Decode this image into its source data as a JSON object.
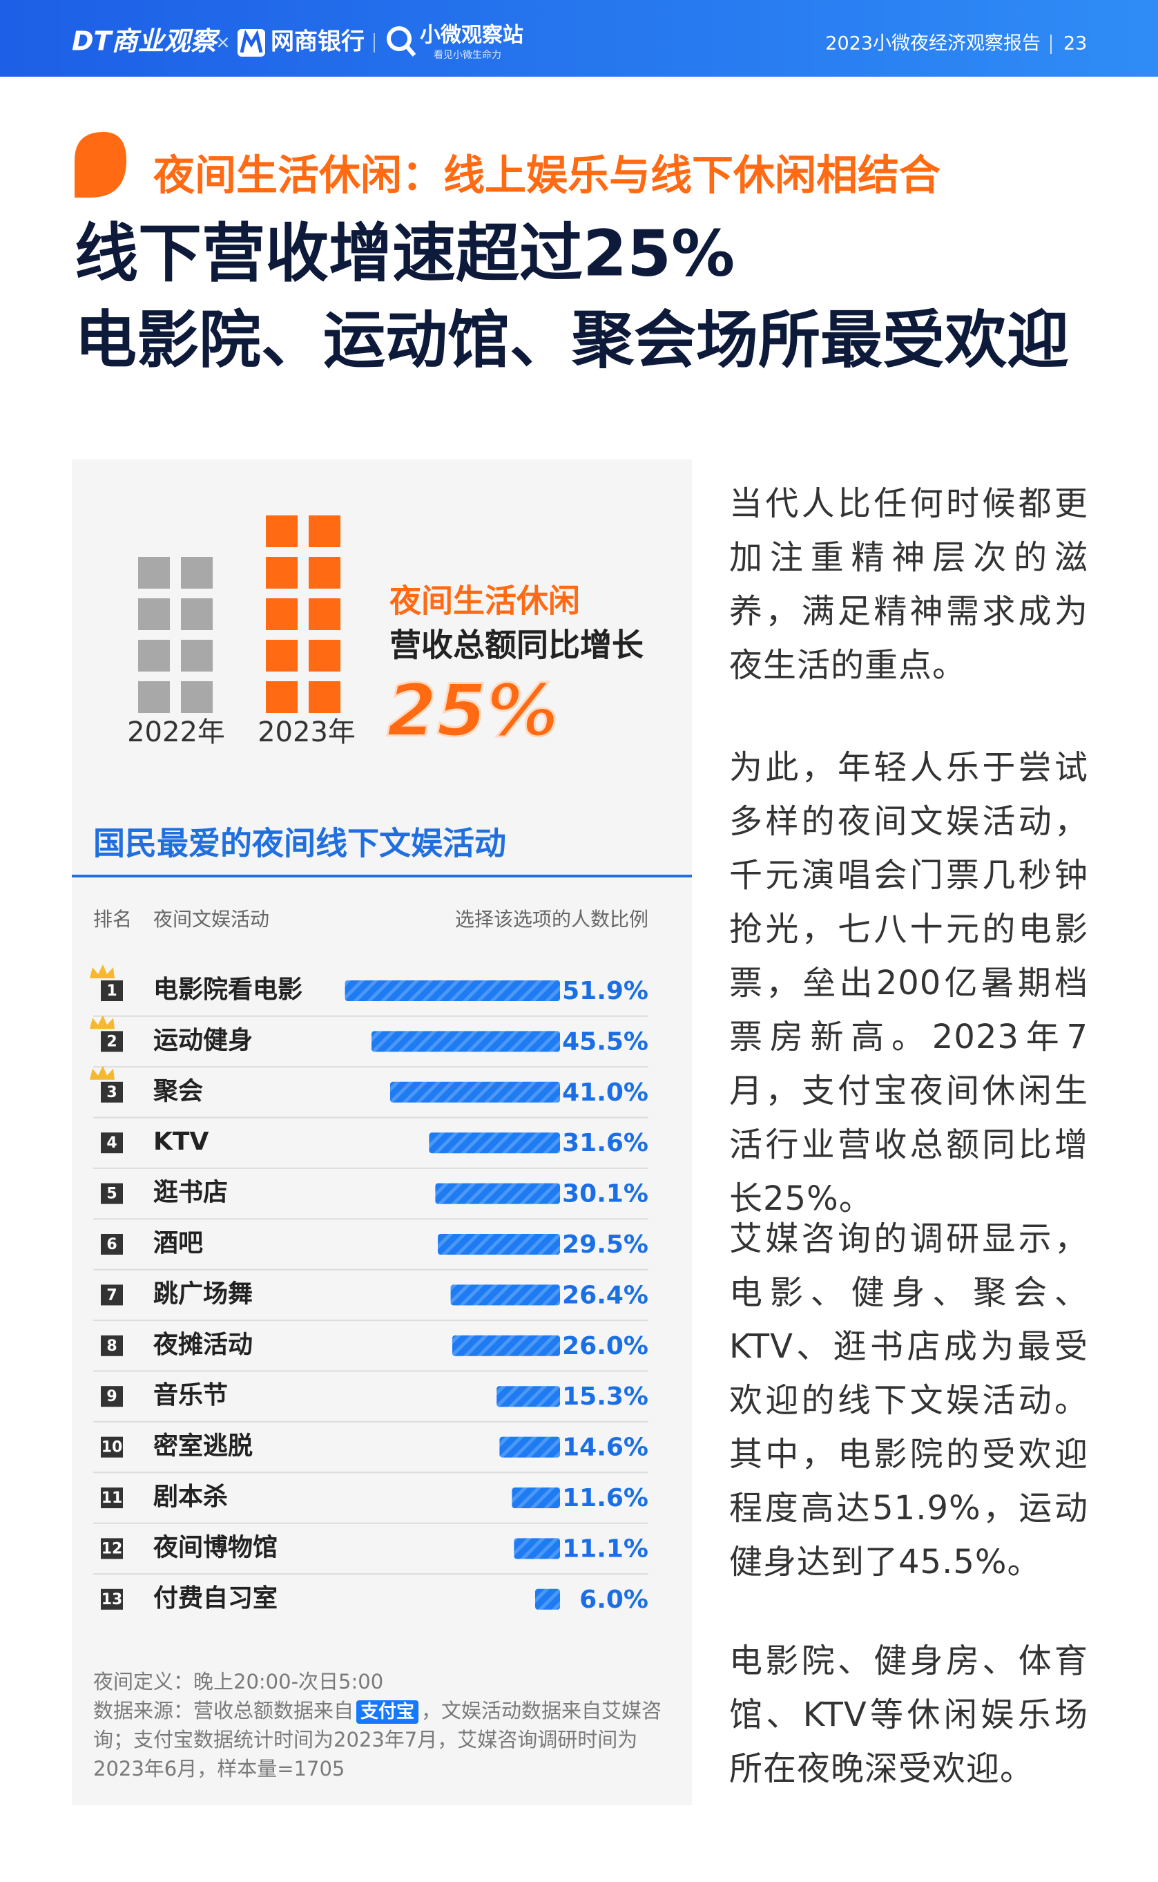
{
  "header": {
    "brands": [
      "DT商业观察",
      "网商银行",
      "小微观察站"
    ],
    "brand_slogan": "看见小微生命力",
    "separator": "×",
    "report_title": "2023小微夜经济观察报告",
    "page_number": 23
  },
  "section_label": "夜间生活休闲：线上娱乐与线下休闲相结合",
  "headline": [
    "线下营收增速超过25%",
    "电影院、运动馆、聚会场所最受欢迎"
  ],
  "highlight": {
    "years": [
      "2022年",
      "2023年"
    ],
    "label_lines": [
      "夜间生活休闲",
      "营收总额同比增长"
    ],
    "growth": "25%"
  },
  "chart_data": {
    "type": "bar",
    "orientation": "horizontal",
    "title": "国民最爱的夜间线下文娱活动",
    "column_headers": [
      "排名",
      "夜间文娱活动",
      "选择该选项的人数比例"
    ],
    "ranks": [
      1,
      2,
      3,
      4,
      5,
      6,
      7,
      8,
      9,
      10,
      11,
      12,
      13
    ],
    "categories": [
      "电影院看电影",
      "运动健身",
      "聚会",
      "KTV",
      "逛书店",
      "酒吧",
      "跳广场舞",
      "夜摊活动",
      "音乐节",
      "密室逃脱",
      "剧本杀",
      "夜间博物馆",
      "付费自习室"
    ],
    "values": [
      51.9,
      45.5,
      41.0,
      31.6,
      30.1,
      29.5,
      26.4,
      26.0,
      15.3,
      14.6,
      11.6,
      11.1,
      6.0
    ],
    "value_labels": [
      "51.9%",
      "45.5%",
      "41.0%",
      "31.6%",
      "30.1%",
      "29.5%",
      "26.4%",
      "26.0%",
      "15.3%",
      "14.6%",
      "11.6%",
      "11.1%",
      "6.0%"
    ],
    "color": "#1f7bf2"
  },
  "notes": {
    "definition": "夜间定义：晚上20:00-次日5:00",
    "source_prefix": "数据来源：营收总额数据来自",
    "source_logo": "支付宝",
    "source_rest": "，文娱活动数据来自艾媒咨询；支付宝数据统计时间为2023年7月，艾媒咨询调研时间为2023年6月，样本量=1705"
  },
  "body": [
    "当代人比任何时候都更加注重精神层次的滋养，满足精神需求成为夜生活的重点。",
    "为此，年轻人乐于尝试多样的夜间文娱活动，千元演唱会门票几秒钟抢光，七八十元的电影票，垒出200亿暑期档票房新高。2023年7月，支付宝夜间休闲生活行业营收总额同比增长25%。",
    "艾媒咨询的调研显示，电影、健身、聚会、KTV、逛书店成为最受欢迎的线下文娱活动。其中，电影院的受欢迎程度高达51.9%，运动健身达到了45.5%。",
    "电影院、健身房、体育馆、KTV等休闲娱乐场所在夜晚深受欢迎。"
  ]
}
